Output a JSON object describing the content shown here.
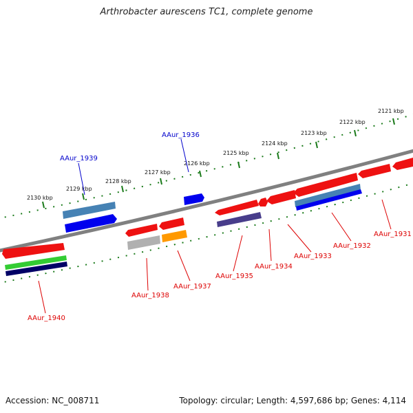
{
  "title": "Arthrobacter aurescens TC1, complete genome",
  "footer": {
    "accession": "Accession: NC_008711",
    "summary": "Topology: circular; Length: 4,597,686 bp; Genes: 4,114"
  },
  "scale_labels": [
    "2121 kbp",
    "2122 kbp",
    "2123 kbp",
    "2124 kbp",
    "2125 kbp",
    "2126 kbp",
    "2127 kbp",
    "2128 kbp",
    "2129 kbp",
    "2130 kbp"
  ],
  "gene_labels": {
    "forward": [
      "AAur_1936",
      "AAur_1939"
    ],
    "reverse": [
      "AAur_1931",
      "AAur_1932",
      "AAur_1933",
      "AAur_1934",
      "AAur_1935",
      "AAur_1937",
      "AAur_1938",
      "AAur_1940"
    ]
  },
  "colors": {
    "forward_label": "#0000cc",
    "reverse_label": "#dd0000",
    "backbone": "#808080",
    "scale": "#1a7a1a",
    "cds_red": "#ee1111",
    "cds_blue": "#0000ee",
    "steel_blue": "#4682b4",
    "gray": "#b0b0b0",
    "orange": "#ff9900",
    "green": "#33cc33",
    "navy": "#000066",
    "slate": "#483d8b"
  }
}
